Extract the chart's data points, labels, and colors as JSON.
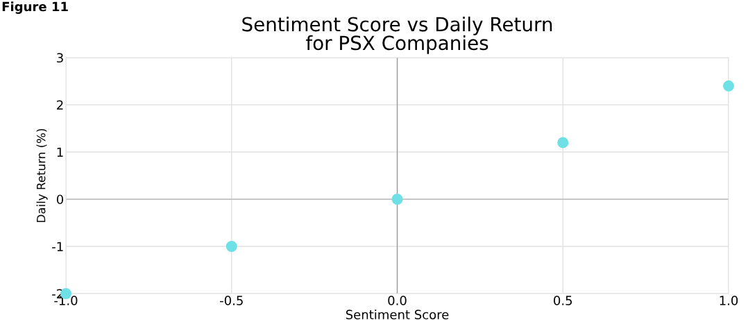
{
  "chart_data": {
    "type": "scatter",
    "title": "Sentiment Score vs Daily Return\nfor PSX Companies",
    "xlabel": "Sentiment Score",
    "ylabel": "Daily Return (%)",
    "annotations": [
      "Figure 11"
    ],
    "x": [
      -1.0,
      -0.5,
      0.0,
      0.5,
      1.0
    ],
    "series": [
      {
        "color": "#6ee0e6",
        "values": [
          -2,
          -1,
          0,
          1.2,
          2.4
        ]
      }
    ],
    "xlim": [
      -1.0,
      1.0
    ],
    "ylim": [
      -2,
      3
    ],
    "xticks": [
      {
        "value": -1.0,
        "label": "-1.0"
      },
      {
        "value": -0.5,
        "label": "-0.5"
      },
      {
        "value": 0.0,
        "label": "0.0"
      },
      {
        "value": 0.5,
        "label": "0.5"
      },
      {
        "value": 1.0,
        "label": "1.0"
      }
    ],
    "yticks": [
      {
        "value": -2,
        "label": "-2"
      },
      {
        "value": -1,
        "label": "-1"
      },
      0,
      1,
      2,
      3
    ],
    "ref_lines": [
      {
        "axis": "x",
        "value": 0,
        "color": "#999999"
      },
      {
        "axis": "y",
        "value": 0,
        "color": "#bbbbbb"
      }
    ],
    "grid": true,
    "marker": "circle"
  }
}
